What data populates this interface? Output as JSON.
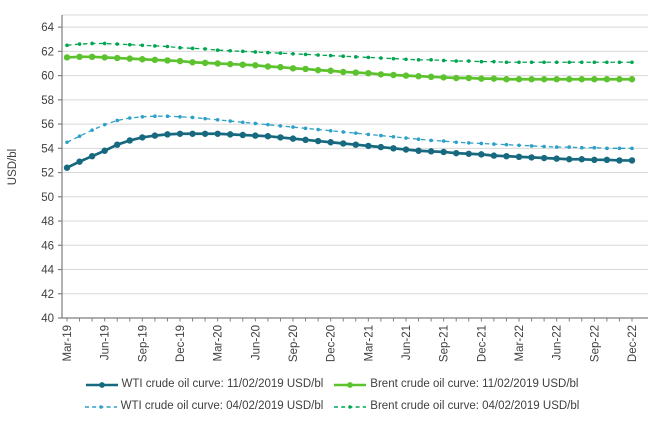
{
  "chart_data": {
    "type": "line",
    "title": "",
    "xlabel": "",
    "ylabel": "USD/bl",
    "ylim": [
      40,
      65
    ],
    "y_ticks": [
      40,
      42,
      44,
      46,
      48,
      50,
      52,
      54,
      56,
      58,
      60,
      62,
      64
    ],
    "grid": "horizontal",
    "legend_position": "bottom",
    "x_frequency": "monthly",
    "x_tick_labels": [
      "Mar-19",
      "Jun-19",
      "Sep-19",
      "Dec-19",
      "Mar-20",
      "Jun-20",
      "Sep-20",
      "Dec-20",
      "Mar-21",
      "Jun-21",
      "Sep-21",
      "Dec-21",
      "Mar-22",
      "Jun-22",
      "Sep-22",
      "Dec-22"
    ],
    "x_range": [
      "Mar-19",
      "Dec-22"
    ],
    "colors": {
      "gridline": "#d8d8d8",
      "axis": "#7f7f7f",
      "tick_text": "#3f3f3f"
    },
    "series": [
      {
        "name": "WTI crude oil curve: 11/02/2019 USD/bl",
        "color": "#16697f",
        "style": "solid",
        "values": [
          52.4,
          52.9,
          53.35,
          53.8,
          54.3,
          54.65,
          54.9,
          55.05,
          55.15,
          55.2,
          55.2,
          55.2,
          55.2,
          55.15,
          55.1,
          55.05,
          55.0,
          54.9,
          54.8,
          54.7,
          54.6,
          54.5,
          54.4,
          54.3,
          54.2,
          54.1,
          54.0,
          53.9,
          53.8,
          53.75,
          53.7,
          53.6,
          53.55,
          53.5,
          53.4,
          53.35,
          53.3,
          53.25,
          53.2,
          53.15,
          53.1,
          53.1,
          53.05,
          53.05,
          53.0,
          53.0
        ]
      },
      {
        "name": "Brent crude oil curve: 11/02/2019 USD/bl",
        "color": "#5cc22e",
        "style": "solid",
        "values": [
          61.5,
          61.55,
          61.55,
          61.5,
          61.45,
          61.4,
          61.35,
          61.3,
          61.25,
          61.2,
          61.1,
          61.05,
          61.0,
          60.95,
          60.9,
          60.85,
          60.75,
          60.7,
          60.6,
          60.55,
          60.45,
          60.4,
          60.3,
          60.25,
          60.2,
          60.1,
          60.05,
          60.0,
          59.95,
          59.9,
          59.85,
          59.8,
          59.8,
          59.75,
          59.75,
          59.7,
          59.7,
          59.7,
          59.7,
          59.7,
          59.7,
          59.7,
          59.7,
          59.7,
          59.7,
          59.7
        ]
      },
      {
        "name": "WTI crude oil curve: 04/02/2019 USD/bl",
        "color": "#2da0c7",
        "style": "dashed",
        "values": [
          54.5,
          55.0,
          55.5,
          55.95,
          56.3,
          56.5,
          56.6,
          56.65,
          56.65,
          56.6,
          56.55,
          56.45,
          56.35,
          56.25,
          56.15,
          56.05,
          55.95,
          55.85,
          55.75,
          55.65,
          55.55,
          55.45,
          55.35,
          55.25,
          55.15,
          55.05,
          54.95,
          54.85,
          54.75,
          54.65,
          54.6,
          54.5,
          54.45,
          54.4,
          54.35,
          54.3,
          54.25,
          54.2,
          54.15,
          54.1,
          54.1,
          54.05,
          54.05,
          54.0,
          54.0,
          54.0
        ]
      },
      {
        "name": "Brent crude oil curve: 04/02/2019 USD/bl",
        "color": "#00a550",
        "style": "dashed",
        "values": [
          62.5,
          62.6,
          62.65,
          62.65,
          62.6,
          62.55,
          62.5,
          62.45,
          62.4,
          62.3,
          62.25,
          62.2,
          62.1,
          62.05,
          62.0,
          61.95,
          61.9,
          61.85,
          61.8,
          61.75,
          61.7,
          61.65,
          61.6,
          61.55,
          61.5,
          61.45,
          61.4,
          61.35,
          61.3,
          61.3,
          61.25,
          61.2,
          61.2,
          61.15,
          61.15,
          61.1,
          61.1,
          61.1,
          61.1,
          61.1,
          61.1,
          61.1,
          61.1,
          61.1,
          61.1,
          61.1
        ]
      }
    ],
    "legend_rows": [
      [
        0,
        1
      ],
      [
        2,
        3
      ]
    ]
  }
}
